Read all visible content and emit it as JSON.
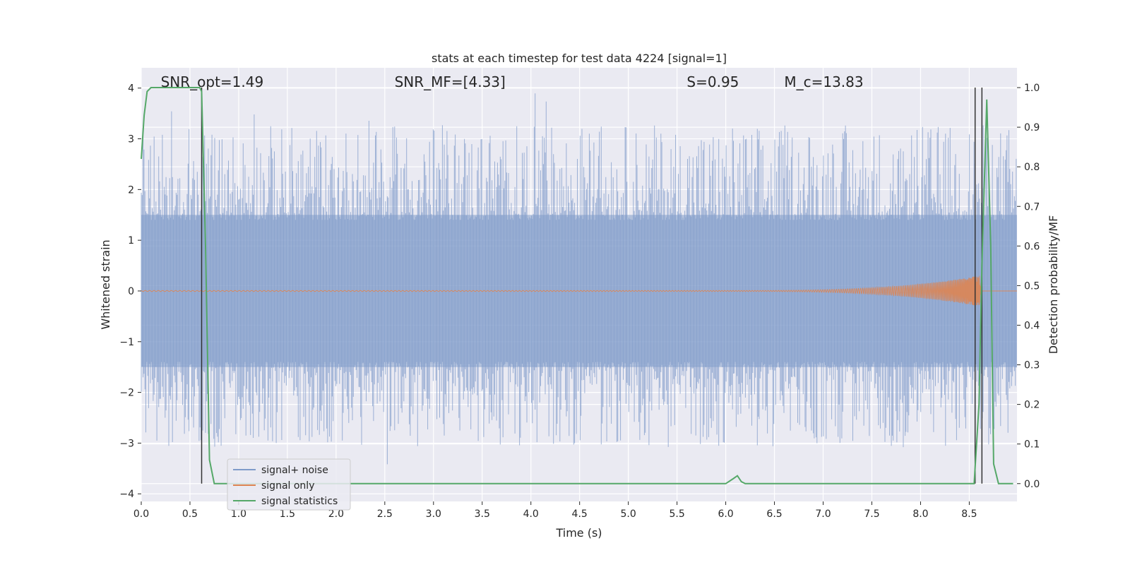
{
  "chart_data": {
    "type": "line",
    "title": "stats at each timestep for test data 4224 [signal=1]",
    "xlabel": "Time (s)",
    "ylabel": "Whitened strain",
    "y2label": "Detection probability/MF",
    "xlim": [
      0.0,
      8.99
    ],
    "ylim": [
      -4.15,
      4.4
    ],
    "y2lim": [
      -0.045,
      1.05
    ],
    "x_ticks": [
      0.0,
      0.5,
      1.0,
      1.5,
      2.0,
      2.5,
      3.0,
      3.5,
      4.0,
      4.5,
      5.0,
      5.5,
      6.0,
      6.5,
      7.0,
      7.5,
      8.0,
      8.5
    ],
    "x_tick_labels": [
      "0.0",
      "0.5",
      "1.0",
      "1.5",
      "2.0",
      "2.5",
      "3.0",
      "3.5",
      "4.0",
      "4.5",
      "5.0",
      "5.5",
      "6.0",
      "6.5",
      "7.0",
      "7.5",
      "8.0",
      "8.5"
    ],
    "y_ticks": [
      -4,
      -3,
      -2,
      -1,
      0,
      1,
      2,
      3,
      4
    ],
    "y_tick_labels": [
      "−4",
      "−3",
      "−2",
      "−1",
      "0",
      "1",
      "2",
      "3",
      "4"
    ],
    "y2_ticks": [
      0.0,
      0.1,
      0.2,
      0.3,
      0.4,
      0.5,
      0.6,
      0.7,
      0.8,
      0.9,
      1.0
    ],
    "y2_tick_labels": [
      "0.0",
      "0.1",
      "0.2",
      "0.3",
      "0.4",
      "0.5",
      "0.6",
      "0.7",
      "0.8",
      "0.9",
      "1.0"
    ],
    "grid": true,
    "legend_position": "lower-left",
    "annotations": [
      {
        "id": "snr-opt",
        "text": "SNR_opt=1.49",
        "x": 0.2,
        "y": 4.12
      },
      {
        "id": "snr-mf",
        "text": "SNR_MF=[4.33]",
        "x": 2.6,
        "y": 4.12
      },
      {
        "id": "s-stat",
        "text": "S=0.95",
        "x": 5.6,
        "y": 4.12
      },
      {
        "id": "chirp-mass",
        "text": "M_c=13.83",
        "x": 6.6,
        "y": 4.12
      }
    ],
    "series": [
      {
        "name": "signal+ noise",
        "color": "#7f9bc9",
        "axis": "left",
        "kind": "noise",
        "envelope": {
          "band": 1.5,
          "max_peak": 4.0,
          "min_peak": -3.5
        }
      },
      {
        "name": "signal only",
        "color": "#dd8452",
        "axis": "left",
        "kind": "chirp",
        "amplitude_max": 0.3,
        "merger_time": 8.63
      },
      {
        "name": "signal statistics",
        "color": "#55a868",
        "axis": "right",
        "kind": "line",
        "x": [
          0.0,
          0.03,
          0.06,
          0.1,
          0.15,
          0.2,
          0.3,
          0.4,
          0.5,
          0.6,
          0.62,
          0.66,
          0.7,
          0.75,
          0.8,
          1.0,
          2.0,
          3.0,
          4.0,
          5.0,
          5.95,
          6.0,
          6.08,
          6.12,
          6.16,
          6.2,
          6.3,
          7.0,
          8.0,
          8.5,
          8.55,
          8.6,
          8.63,
          8.68,
          8.72,
          8.75,
          8.8,
          8.85,
          8.9,
          8.95
        ],
        "y": [
          0.82,
          0.93,
          0.99,
          1.0,
          1.0,
          1.0,
          1.0,
          1.0,
          1.0,
          1.0,
          0.99,
          0.6,
          0.06,
          0.0,
          0.0,
          0.0,
          0.0,
          0.0,
          0.0,
          0.0,
          0.0,
          0.0,
          0.013,
          0.02,
          0.005,
          0.0,
          0.0,
          0.0,
          0.0,
          0.0,
          0.0,
          0.2,
          0.55,
          0.97,
          0.6,
          0.05,
          0.0,
          0.0,
          0.0,
          0.0
        ]
      }
    ],
    "vertical_lines": [
      {
        "x": 0.62,
        "y2_range": [
          0.0,
          1.0
        ]
      },
      {
        "x": 8.56,
        "y2_range": [
          0.0,
          1.0
        ]
      },
      {
        "x": 8.63,
        "y2_range": [
          0.0,
          1.0
        ]
      }
    ]
  }
}
